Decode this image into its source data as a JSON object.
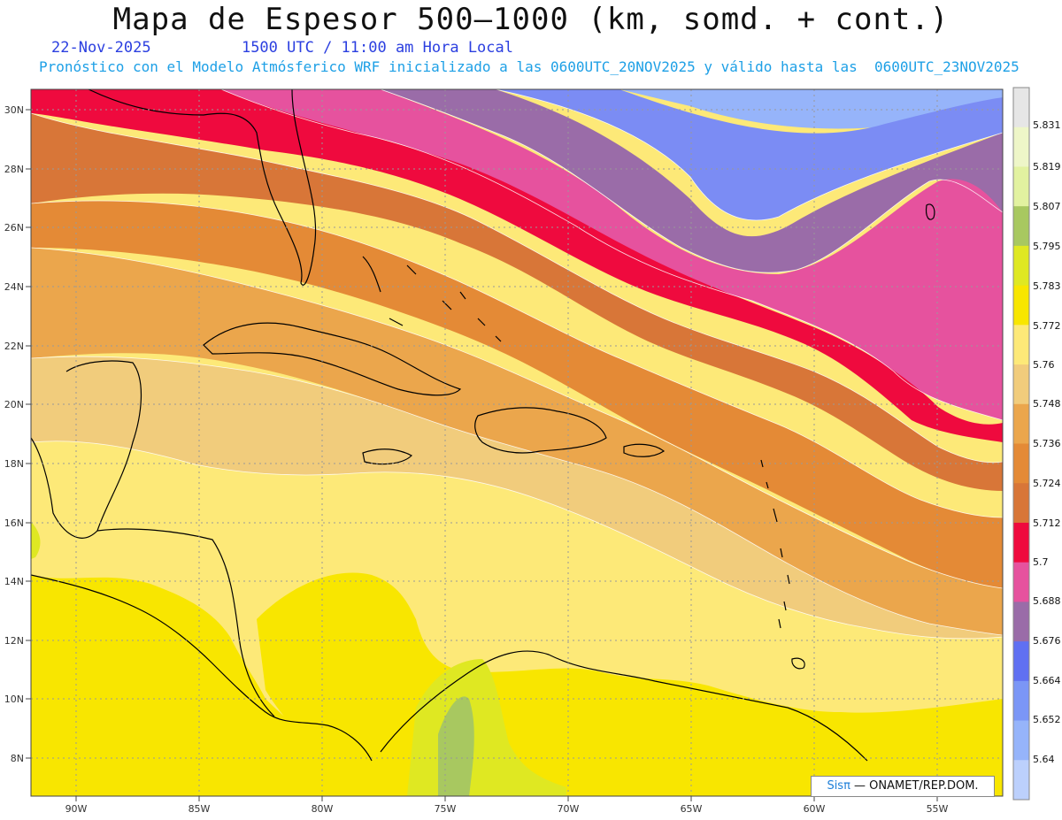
{
  "header": {
    "title": "Mapa de Espesor 500—1000 (km, somd. + cont.)",
    "date": "22-Nov-2025",
    "time": "1500 UTC / 11:00 am Hora Local",
    "description": "Pronóstico con el Modelo Atmósferico WRF inicializado a las 0600UTC_20NOV2025 y válido hasta las  0600UTC_23NOV2025"
  },
  "axes": {
    "lat_labels": [
      "30N",
      "28N",
      "26N",
      "24N",
      "22N",
      "20N",
      "18N",
      "16N",
      "14N",
      "12N",
      "10N",
      "8N"
    ],
    "lon_labels": [
      "90W",
      "85W",
      "80W",
      "75W",
      "70W",
      "65W",
      "60W",
      "55W"
    ]
  },
  "colorbar": {
    "labels": [
      "5.831",
      "5.819",
      "5.807",
      "5.795",
      "5.783",
      "5.772",
      "5.76",
      "5.748",
      "5.736",
      "5.724",
      "5.712",
      "5.7",
      "5.688",
      "5.676",
      "5.664",
      "5.652",
      "5.64"
    ],
    "colors": [
      "#e6e6e6",
      "#eef6c8",
      "#e2f2a0",
      "#a8c860",
      "#dfe822",
      "#f8e600",
      "#fde978",
      "#f1cc7c",
      "#eba64c",
      "#e48a36",
      "#d87638",
      "#ef0a3e",
      "#e6529e",
      "#9a6ca8",
      "#6070f2",
      "#7b96f6",
      "#96b4fa",
      "#bcd0fc"
    ]
  },
  "credit": {
    "brand": "Sisπ",
    "text": " — ONAMET/REP.DOM."
  }
}
